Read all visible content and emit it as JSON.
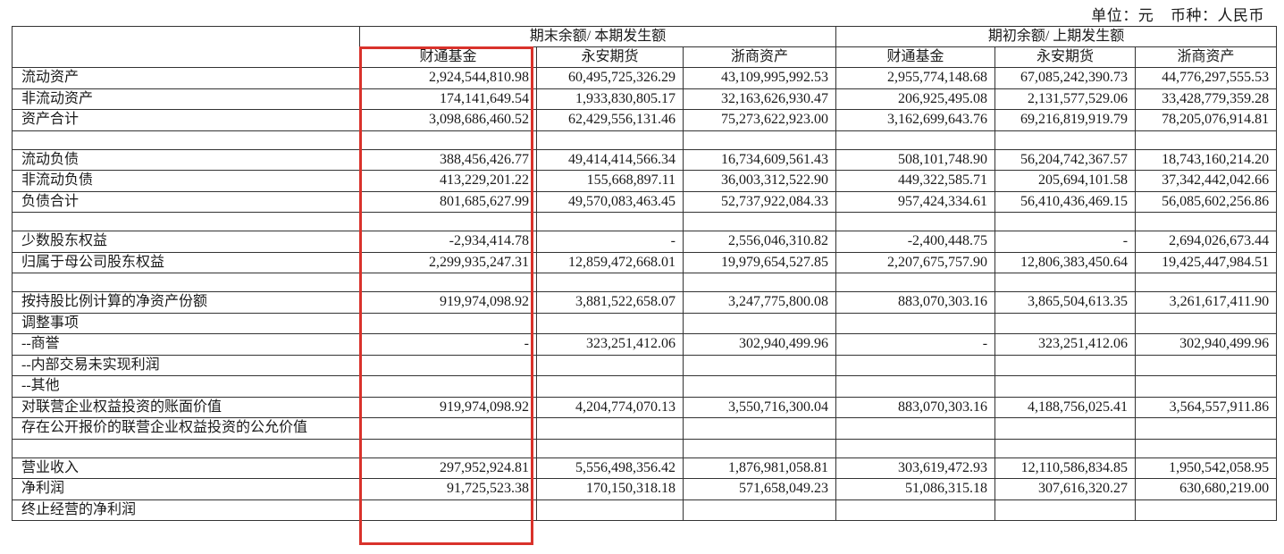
{
  "unit_line": {
    "unit": "单位：元",
    "currency": "币种：人民币"
  },
  "header": {
    "group_current": "期末余额/ 本期发生额",
    "group_prior": "期初余额/ 上期发生额",
    "columns": [
      "财通基金",
      "永安期货",
      "浙商资产",
      "财通基金",
      "永安期货",
      "浙商资产"
    ]
  },
  "highlight": {
    "color": "#d9322b",
    "column": "财通基金 (期末余额/ 本期发生额)"
  },
  "rows": [
    {
      "label": "流动资产",
      "values": [
        "2,924,544,810.98",
        "60,495,725,326.29",
        "43,109,995,992.53",
        "2,955,774,148.68",
        "67,085,242,390.73",
        "44,776,297,555.53"
      ]
    },
    {
      "label": "非流动资产",
      "values": [
        "174,141,649.54",
        "1,933,830,805.17",
        "32,163,626,930.47",
        "206,925,495.08",
        "2,131,577,529.06",
        "33,428,779,359.28"
      ]
    },
    {
      "label": "资产合计",
      "values": [
        "3,098,686,460.52",
        "62,429,556,131.46",
        "75,273,622,923.00",
        "3,162,699,643.76",
        "69,216,819,919.79",
        "78,205,076,914.81"
      ]
    },
    {
      "label": "",
      "values": [
        "",
        "",
        "",
        "",
        "",
        ""
      ]
    },
    {
      "label": "流动负债",
      "values": [
        "388,456,426.77",
        "49,414,414,566.34",
        "16,734,609,561.43",
        "508,101,748.90",
        "56,204,742,367.57",
        "18,743,160,214.20"
      ]
    },
    {
      "label": "非流动负债",
      "values": [
        "413,229,201.22",
        "155,668,897.11",
        "36,003,312,522.90",
        "449,322,585.71",
        "205,694,101.58",
        "37,342,442,042.66"
      ]
    },
    {
      "label": "负债合计",
      "values": [
        "801,685,627.99",
        "49,570,083,463.45",
        "52,737,922,084.33",
        "957,424,334.61",
        "56,410,436,469.15",
        "56,085,602,256.86"
      ]
    },
    {
      "label": "",
      "values": [
        "",
        "",
        "",
        "",
        "",
        ""
      ]
    },
    {
      "label": "少数股东权益",
      "values": [
        "-2,934,414.78",
        "-",
        "2,556,046,310.82",
        "-2,400,448.75",
        "-",
        "2,694,026,673.44"
      ]
    },
    {
      "label": "归属于母公司股东权益",
      "values": [
        "2,299,935,247.31",
        "12,859,472,668.01",
        "19,979,654,527.85",
        "2,207,675,757.90",
        "12,806,383,450.64",
        "19,425,447,984.51"
      ]
    },
    {
      "label": "",
      "values": [
        "",
        "",
        "",
        "",
        "",
        ""
      ]
    },
    {
      "label": "按持股比例计算的净资产份额",
      "values": [
        "919,974,098.92",
        "3,881,522,658.07",
        "3,247,775,800.08",
        "883,070,303.16",
        "3,865,504,613.35",
        "3,261,617,411.90"
      ]
    },
    {
      "label": "调整事项",
      "values": [
        "",
        "",
        "",
        "",
        "",
        ""
      ]
    },
    {
      "label": "--商誉",
      "values": [
        "-",
        "323,251,412.06",
        "302,940,499.96",
        "-",
        "323,251,412.06",
        "302,940,499.96"
      ]
    },
    {
      "label": "--内部交易未实现利润",
      "values": [
        "",
        "",
        "",
        "",
        "",
        ""
      ]
    },
    {
      "label": "--其他",
      "values": [
        "",
        "",
        "",
        "",
        "",
        ""
      ]
    },
    {
      "label": "对联营企业权益投资的账面价值",
      "values": [
        "919,974,098.92",
        "4,204,774,070.13",
        "3,550,716,300.04",
        "883,070,303.16",
        "4,188,756,025.41",
        "3,564,557,911.86"
      ]
    },
    {
      "label": "存在公开报价的联营企业权益投资的公允价值",
      "values": [
        "",
        "",
        "",
        "",
        "",
        ""
      ]
    },
    {
      "label": "",
      "values": [
        "",
        "",
        "",
        "",
        "",
        ""
      ]
    },
    {
      "label": "营业收入",
      "values": [
        "297,952,924.81",
        "5,556,498,356.42",
        "1,876,981,058.81",
        "303,619,472.93",
        "12,110,586,834.85",
        "1,950,542,058.95"
      ]
    },
    {
      "label": "净利润",
      "values": [
        "91,725,523.38",
        "170,150,318.18",
        "571,658,049.23",
        "51,086,315.18",
        "307,616,320.27",
        "630,680,219.00"
      ]
    },
    {
      "label": "终止经营的净利润",
      "values": [
        "",
        "",
        "",
        "",
        "",
        ""
      ]
    }
  ]
}
